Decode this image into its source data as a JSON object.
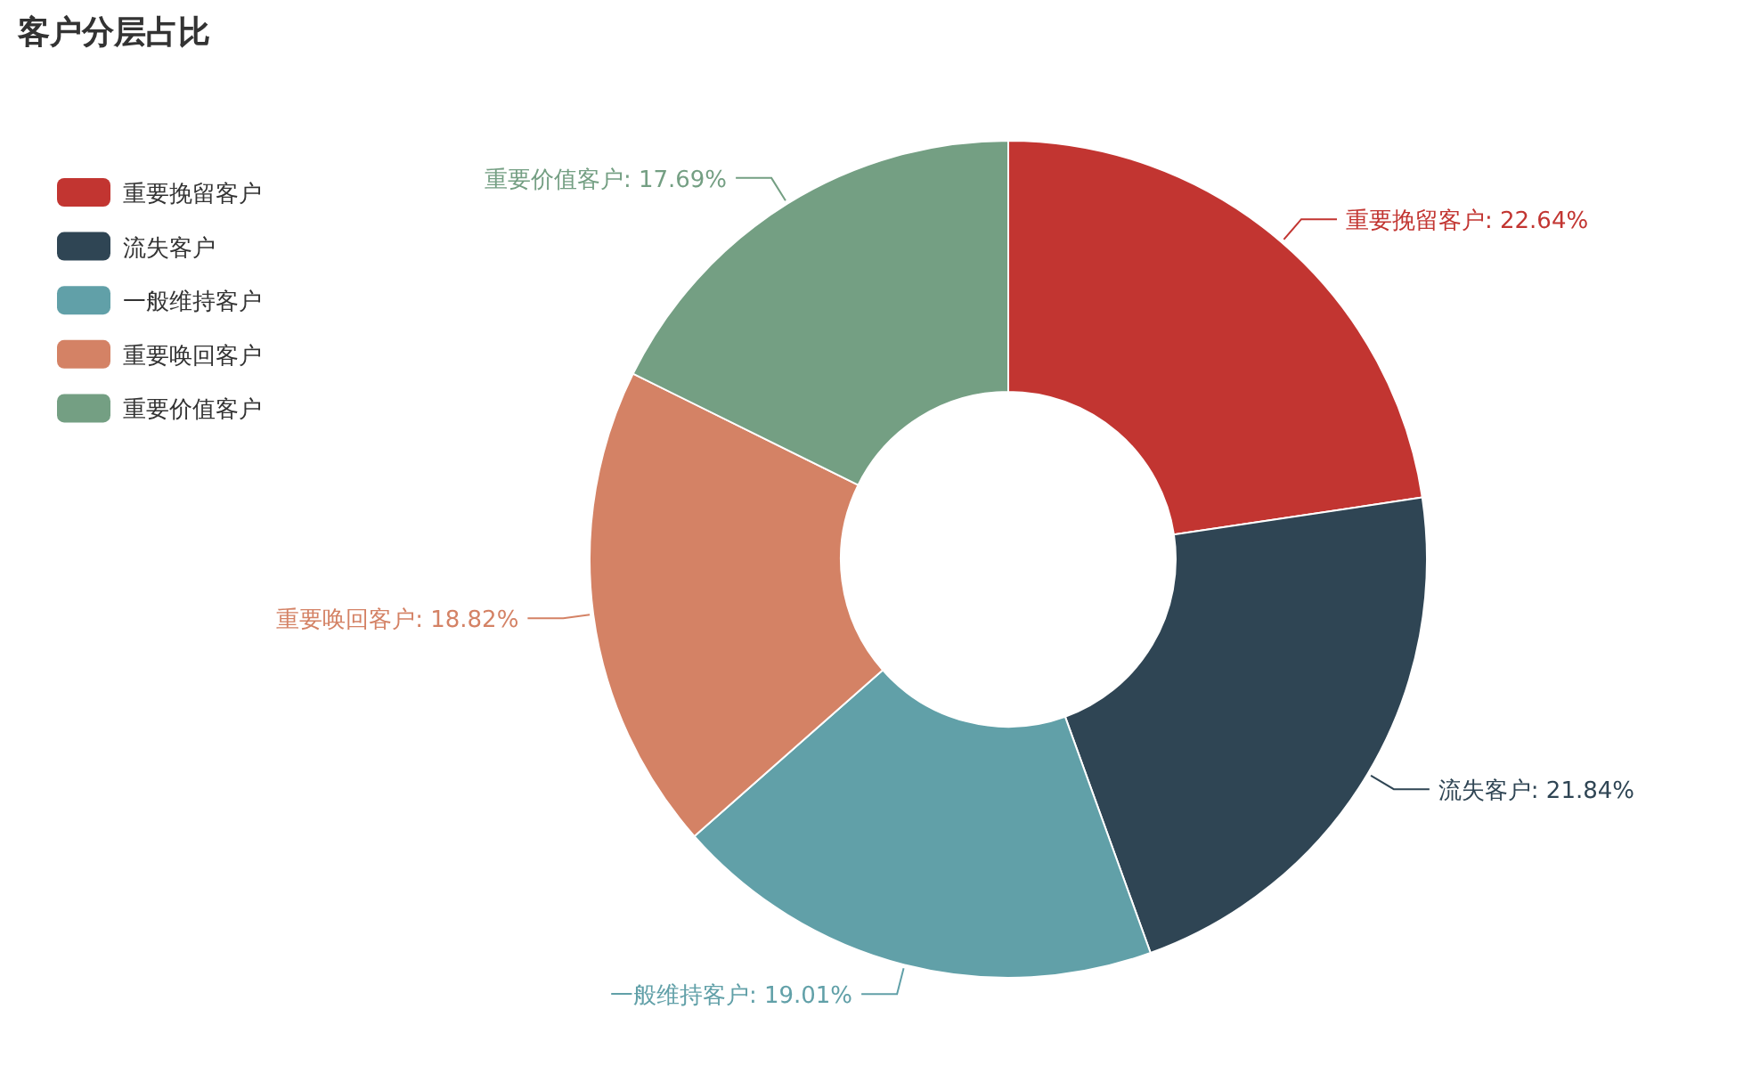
{
  "chart_data": {
    "type": "donut",
    "title": "客户分层占比",
    "categories": [
      "重要挽留客户",
      "流失客户",
      "一般维持客户",
      "重要唤回客户",
      "重要价值客户"
    ],
    "values": [
      22.64,
      21.84,
      19.01,
      18.82,
      17.69
    ],
    "value_labels": [
      "重要挽留客户: 22.64%",
      "流失客户: 21.84%",
      "一般维持客户: 19.01%",
      "重要唤回客户: 18.82%",
      "重要价值客户: 17.69%"
    ],
    "colors": [
      "#c23531",
      "#2f4554",
      "#61a0a8",
      "#d48265",
      "#749f83"
    ],
    "legend": "top left"
  }
}
